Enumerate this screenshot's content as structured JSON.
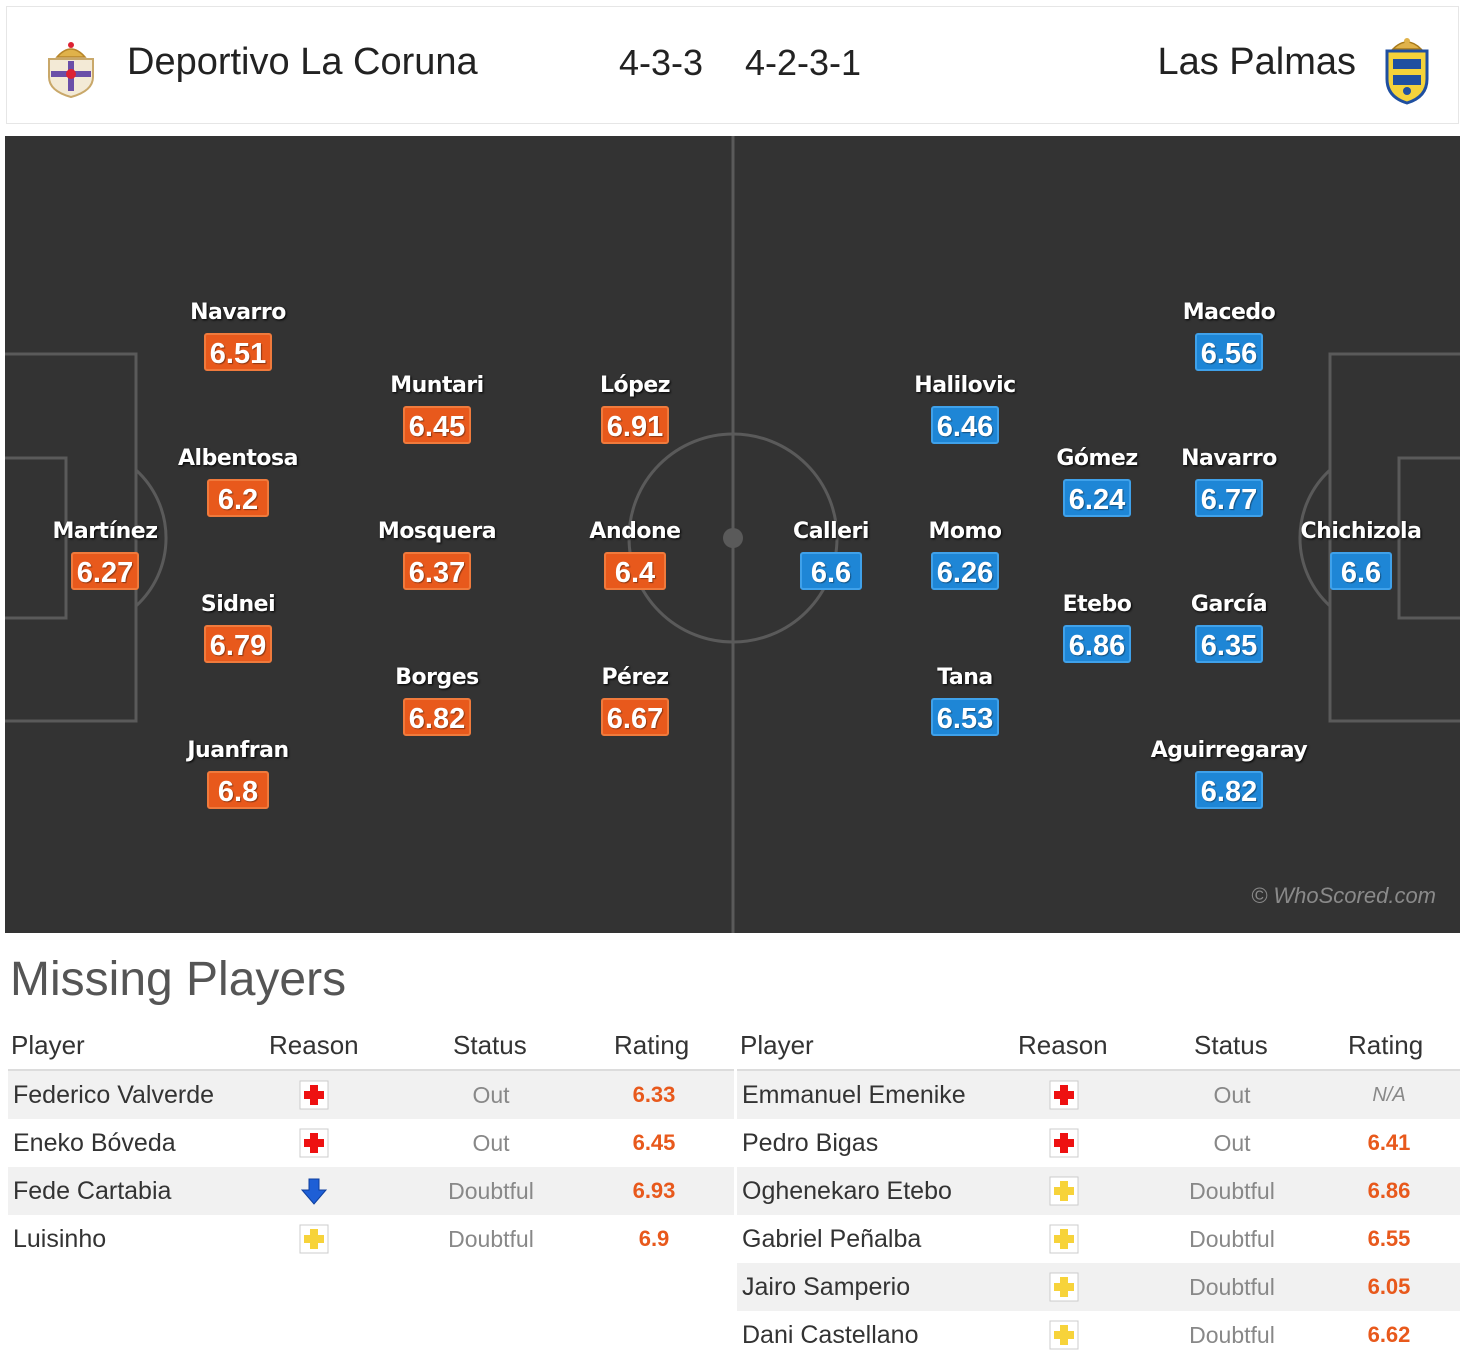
{
  "header": {
    "home_team": "Deportivo La Coruna",
    "home_formation": "4-3-3",
    "away_formation": "4-2-3-1",
    "away_team": "Las Palmas"
  },
  "colors": {
    "home_rating": "#e8591c",
    "away_rating": "#1e86d6",
    "pitch": "#333333"
  },
  "pitch": {
    "watermark": "© WhoScored.com",
    "home_players": [
      {
        "name": "Martínez",
        "rating": "6.27"
      },
      {
        "name": "Navarro",
        "rating": "6.51"
      },
      {
        "name": "Albentosa",
        "rating": "6.2"
      },
      {
        "name": "Sidnei",
        "rating": "6.79"
      },
      {
        "name": "Juanfran",
        "rating": "6.8"
      },
      {
        "name": "Muntari",
        "rating": "6.45"
      },
      {
        "name": "Mosquera",
        "rating": "6.37"
      },
      {
        "name": "Borges",
        "rating": "6.82"
      },
      {
        "name": "López",
        "rating": "6.91"
      },
      {
        "name": "Andone",
        "rating": "6.4"
      },
      {
        "name": "Pérez",
        "rating": "6.67"
      }
    ],
    "away_players": [
      {
        "name": "Chichizola",
        "rating": "6.6"
      },
      {
        "name": "Macedo",
        "rating": "6.56"
      },
      {
        "name": "Navarro",
        "rating": "6.77"
      },
      {
        "name": "García",
        "rating": "6.35"
      },
      {
        "name": "Aguirregaray",
        "rating": "6.82"
      },
      {
        "name": "Gómez",
        "rating": "6.24"
      },
      {
        "name": "Etebo",
        "rating": "6.86"
      },
      {
        "name": "Halilovic",
        "rating": "6.46"
      },
      {
        "name": "Momo",
        "rating": "6.26"
      },
      {
        "name": "Tana",
        "rating": "6.53"
      },
      {
        "name": "Calleri",
        "rating": "6.6"
      }
    ]
  },
  "missing": {
    "title": "Missing Players",
    "columns": {
      "player": "Player",
      "reason": "Reason",
      "status": "Status",
      "rating": "Rating"
    },
    "home": [
      {
        "player": "Federico Valverde",
        "reason": "injury-icon",
        "status": "Out",
        "rating": "6.33"
      },
      {
        "player": "Eneko Bóveda",
        "reason": "injury-icon",
        "status": "Out",
        "rating": "6.45"
      },
      {
        "player": "Fede Cartabia",
        "reason": "down-arrow-icon",
        "status": "Doubtful",
        "rating": "6.93"
      },
      {
        "player": "Luisinho",
        "reason": "doubtful-icon",
        "status": "Doubtful",
        "rating": "6.9"
      }
    ],
    "away": [
      {
        "player": "Emmanuel Emenike",
        "reason": "injury-icon",
        "status": "Out",
        "rating": "N/A"
      },
      {
        "player": "Pedro Bigas",
        "reason": "injury-icon",
        "status": "Out",
        "rating": "6.41"
      },
      {
        "player": "Oghenekaro Etebo",
        "reason": "doubtful-icon",
        "status": "Doubtful",
        "rating": "6.86"
      },
      {
        "player": "Gabriel Peñalba",
        "reason": "doubtful-icon",
        "status": "Doubtful",
        "rating": "6.55"
      },
      {
        "player": "Jairo Samperio",
        "reason": "doubtful-icon",
        "status": "Doubtful",
        "rating": "6.05"
      },
      {
        "player": "Dani Castellano",
        "reason": "doubtful-icon",
        "status": "Doubtful",
        "rating": "6.62"
      }
    ]
  }
}
